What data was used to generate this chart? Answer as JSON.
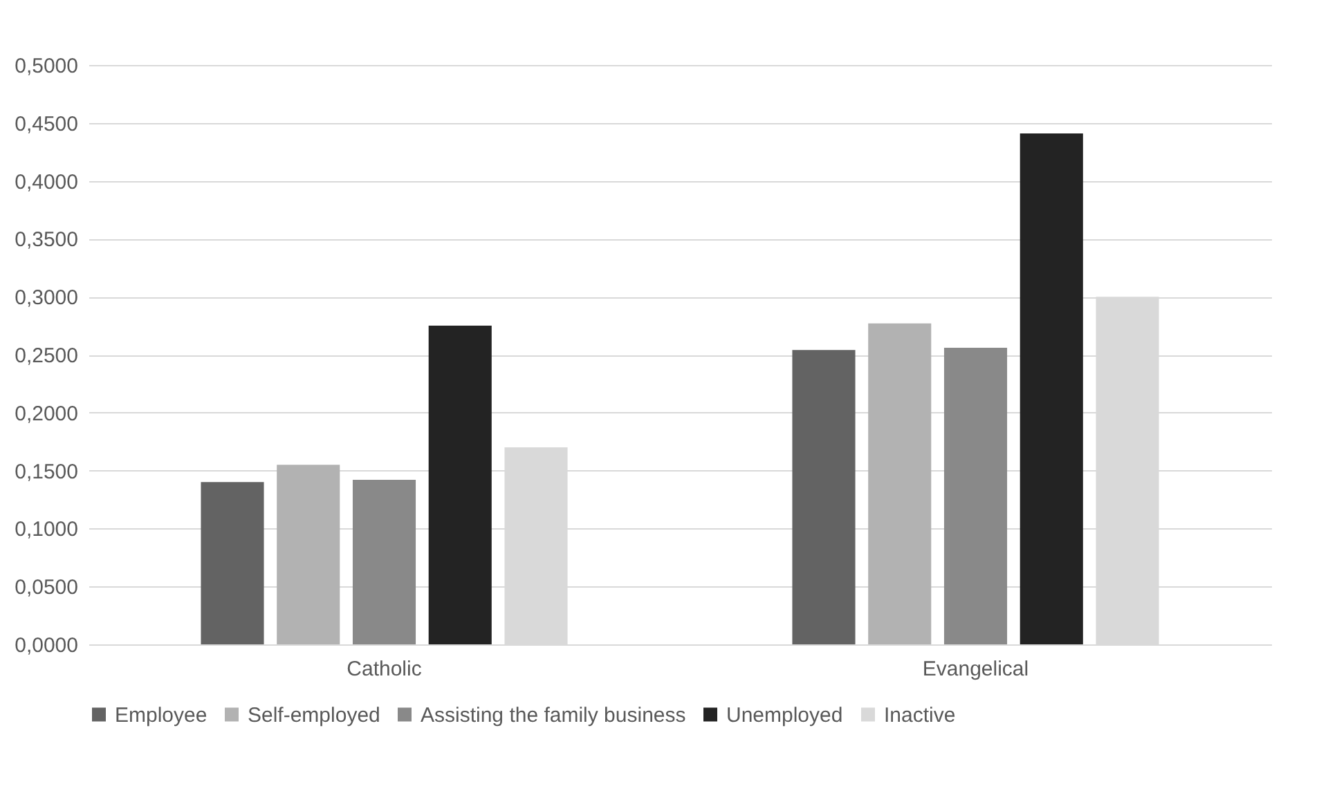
{
  "chart_data": {
    "type": "bar",
    "categories": [
      "Catholic",
      "Evangelical"
    ],
    "series": [
      {
        "name": "Employee",
        "color": "#636363",
        "values": [
          0.14,
          0.254
        ]
      },
      {
        "name": "Self-employed",
        "color": "#b2b2b2",
        "values": [
          0.155,
          0.277
        ]
      },
      {
        "name": "Assisting the family business",
        "color": "#898989",
        "values": [
          0.142,
          0.256
        ]
      },
      {
        "name": "Unemployed",
        "color": "#232323",
        "values": [
          0.275,
          0.441
        ]
      },
      {
        "name": "Inactive",
        "color": "#d9d9d9",
        "values": [
          0.17,
          0.3
        ]
      }
    ],
    "ylim": [
      0,
      0.5
    ],
    "yticks": [
      {
        "value": 0,
        "label": "0,0000"
      },
      {
        "value": 0.05,
        "label": "0,0500"
      },
      {
        "value": 0.1,
        "label": "0,1000"
      },
      {
        "value": 0.15,
        "label": "0,1500"
      },
      {
        "value": 0.2,
        "label": "0,2000"
      },
      {
        "value": 0.25,
        "label": "0,2500"
      },
      {
        "value": 0.3,
        "label": "0,3000"
      },
      {
        "value": 0.35,
        "label": "0,3500"
      },
      {
        "value": 0.4,
        "label": "0,4000"
      },
      {
        "value": 0.45,
        "label": "0,4500"
      },
      {
        "value": 0.5,
        "label": "0,5000"
      }
    ],
    "grid": "y",
    "legend": "bottom"
  }
}
